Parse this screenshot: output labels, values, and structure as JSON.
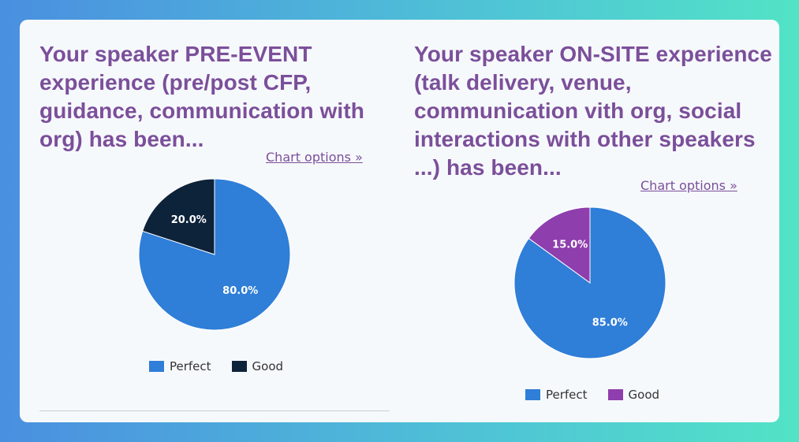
{
  "chart_data": [
    {
      "type": "pie",
      "title": "Your speaker PRE-EVENT experience (pre/post CFP, guidance, communication with org) has been...",
      "categories": [
        "Perfect",
        "Good"
      ],
      "values": [
        80.0,
        20.0
      ],
      "value_labels": [
        "80.0%",
        "20.0%"
      ],
      "colors": [
        "#2f7ed8",
        "#0d233a"
      ],
      "legend_position": "bottom",
      "options_link": "Chart options »"
    },
    {
      "type": "pie",
      "title": "Your speaker ON-SITE experience (talk delivery, venue, communication vith org, social interactions with other speakers ...) has been...",
      "categories": [
        "Perfect",
        "Good"
      ],
      "values": [
        85.0,
        15.0
      ],
      "value_labels": [
        "85.0%",
        "15.0%"
      ],
      "colors": [
        "#2f7ed8",
        "#8e3ead"
      ],
      "legend_position": "bottom",
      "options_link": "Chart options »"
    }
  ]
}
